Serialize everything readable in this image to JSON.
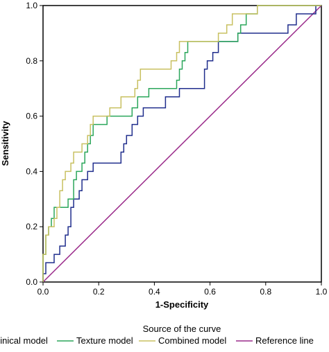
{
  "chart_data": {
    "type": "line",
    "xlabel": "1-Specificity",
    "ylabel": "Sensitivity",
    "xlim": [
      0,
      1
    ],
    "ylim": [
      0,
      1
    ],
    "xticks": [
      "0.0",
      "0.2",
      "0.4",
      "0.6",
      "0.8",
      "1.0"
    ],
    "yticks": [
      "0.0",
      "0.2",
      "0.4",
      "0.6",
      "0.8",
      "1.0"
    ],
    "legend_title": "Source of the curve",
    "legend_position": "bottom",
    "grid": false,
    "series": [
      {
        "name": "Clinical model",
        "color": "#1f2d8c",
        "points": [
          [
            0,
            0
          ],
          [
            0,
            0.03
          ],
          [
            0.01,
            0.03
          ],
          [
            0.01,
            0.07
          ],
          [
            0.04,
            0.07
          ],
          [
            0.04,
            0.1
          ],
          [
            0.06,
            0.1
          ],
          [
            0.06,
            0.13
          ],
          [
            0.08,
            0.13
          ],
          [
            0.08,
            0.17
          ],
          [
            0.09,
            0.17
          ],
          [
            0.09,
            0.2
          ],
          [
            0.1,
            0.2
          ],
          [
            0.1,
            0.23
          ],
          [
            0.1,
            0.27
          ],
          [
            0.11,
            0.27
          ],
          [
            0.11,
            0.3
          ],
          [
            0.13,
            0.3
          ],
          [
            0.13,
            0.33
          ],
          [
            0.14,
            0.33
          ],
          [
            0.14,
            0.37
          ],
          [
            0.16,
            0.37
          ],
          [
            0.16,
            0.4
          ],
          [
            0.18,
            0.4
          ],
          [
            0.18,
            0.43
          ],
          [
            0.28,
            0.43
          ],
          [
            0.28,
            0.47
          ],
          [
            0.29,
            0.47
          ],
          [
            0.29,
            0.5
          ],
          [
            0.3,
            0.5
          ],
          [
            0.3,
            0.53
          ],
          [
            0.32,
            0.53
          ],
          [
            0.32,
            0.57
          ],
          [
            0.34,
            0.57
          ],
          [
            0.34,
            0.6
          ],
          [
            0.36,
            0.6
          ],
          [
            0.36,
            0.63
          ],
          [
            0.44,
            0.63
          ],
          [
            0.44,
            0.67
          ],
          [
            0.49,
            0.67
          ],
          [
            0.49,
            0.7
          ],
          [
            0.58,
            0.7
          ],
          [
            0.58,
            0.77
          ],
          [
            0.59,
            0.77
          ],
          [
            0.59,
            0.8
          ],
          [
            0.61,
            0.8
          ],
          [
            0.61,
            0.83
          ],
          [
            0.63,
            0.83
          ],
          [
            0.63,
            0.87
          ],
          [
            0.7,
            0.87
          ],
          [
            0.7,
            0.9
          ],
          [
            0.88,
            0.9
          ],
          [
            0.88,
            0.93
          ],
          [
            0.91,
            0.93
          ],
          [
            0.91,
            0.97
          ],
          [
            0.98,
            0.97
          ],
          [
            0.98,
            1
          ],
          [
            1,
            1
          ]
        ]
      },
      {
        "name": "Texture model",
        "color": "#2aa65a",
        "points": [
          [
            0,
            0
          ],
          [
            0,
            0.1
          ],
          [
            0.01,
            0.1
          ],
          [
            0.01,
            0.17
          ],
          [
            0.02,
            0.17
          ],
          [
            0.02,
            0.2
          ],
          [
            0.03,
            0.2
          ],
          [
            0.03,
            0.23
          ],
          [
            0.04,
            0.23
          ],
          [
            0.04,
            0.27
          ],
          [
            0.09,
            0.27
          ],
          [
            0.09,
            0.3
          ],
          [
            0.11,
            0.3
          ],
          [
            0.11,
            0.37
          ],
          [
            0.12,
            0.37
          ],
          [
            0.12,
            0.4
          ],
          [
            0.14,
            0.4
          ],
          [
            0.14,
            0.43
          ],
          [
            0.15,
            0.43
          ],
          [
            0.15,
            0.47
          ],
          [
            0.16,
            0.47
          ],
          [
            0.16,
            0.5
          ],
          [
            0.17,
            0.5
          ],
          [
            0.17,
            0.53
          ],
          [
            0.18,
            0.53
          ],
          [
            0.18,
            0.57
          ],
          [
            0.23,
            0.57
          ],
          [
            0.23,
            0.6
          ],
          [
            0.32,
            0.6
          ],
          [
            0.32,
            0.63
          ],
          [
            0.34,
            0.63
          ],
          [
            0.34,
            0.67
          ],
          [
            0.38,
            0.67
          ],
          [
            0.38,
            0.7
          ],
          [
            0.48,
            0.7
          ],
          [
            0.48,
            0.73
          ],
          [
            0.49,
            0.73
          ],
          [
            0.49,
            0.77
          ],
          [
            0.5,
            0.77
          ],
          [
            0.5,
            0.8
          ],
          [
            0.51,
            0.8
          ],
          [
            0.51,
            0.83
          ],
          [
            0.52,
            0.83
          ],
          [
            0.52,
            0.87
          ],
          [
            0.7,
            0.87
          ],
          [
            0.7,
            0.9
          ],
          [
            0.71,
            0.9
          ],
          [
            0.71,
            0.93
          ],
          [
            0.73,
            0.93
          ],
          [
            0.73,
            0.97
          ],
          [
            0.77,
            0.97
          ],
          [
            0.77,
            1
          ],
          [
            1,
            1
          ]
        ]
      },
      {
        "name": "Combined model",
        "color": "#c8c060",
        "points": [
          [
            0,
            0
          ],
          [
            0,
            0.1
          ],
          [
            0.01,
            0.1
          ],
          [
            0.01,
            0.17
          ],
          [
            0.02,
            0.17
          ],
          [
            0.02,
            0.2
          ],
          [
            0.04,
            0.2
          ],
          [
            0.04,
            0.23
          ],
          [
            0.05,
            0.23
          ],
          [
            0.05,
            0.27
          ],
          [
            0.06,
            0.27
          ],
          [
            0.06,
            0.33
          ],
          [
            0.07,
            0.33
          ],
          [
            0.07,
            0.37
          ],
          [
            0.08,
            0.37
          ],
          [
            0.08,
            0.4
          ],
          [
            0.1,
            0.4
          ],
          [
            0.1,
            0.43
          ],
          [
            0.11,
            0.43
          ],
          [
            0.11,
            0.47
          ],
          [
            0.14,
            0.47
          ],
          [
            0.14,
            0.5
          ],
          [
            0.16,
            0.5
          ],
          [
            0.16,
            0.53
          ],
          [
            0.17,
            0.53
          ],
          [
            0.17,
            0.57
          ],
          [
            0.18,
            0.57
          ],
          [
            0.18,
            0.6
          ],
          [
            0.24,
            0.6
          ],
          [
            0.24,
            0.63
          ],
          [
            0.28,
            0.63
          ],
          [
            0.28,
            0.67
          ],
          [
            0.33,
            0.67
          ],
          [
            0.33,
            0.7
          ],
          [
            0.34,
            0.7
          ],
          [
            0.34,
            0.73
          ],
          [
            0.35,
            0.73
          ],
          [
            0.35,
            0.77
          ],
          [
            0.46,
            0.77
          ],
          [
            0.46,
            0.8
          ],
          [
            0.48,
            0.8
          ],
          [
            0.48,
            0.83
          ],
          [
            0.49,
            0.83
          ],
          [
            0.49,
            0.87
          ],
          [
            0.63,
            0.87
          ],
          [
            0.63,
            0.9
          ],
          [
            0.66,
            0.9
          ],
          [
            0.66,
            0.93
          ],
          [
            0.68,
            0.93
          ],
          [
            0.68,
            0.97
          ],
          [
            0.77,
            0.97
          ],
          [
            0.77,
            1
          ],
          [
            1,
            1
          ]
        ]
      },
      {
        "name": "Reference line",
        "color": "#9a2a8a",
        "points": [
          [
            0,
            0
          ],
          [
            1,
            1
          ]
        ]
      }
    ]
  }
}
